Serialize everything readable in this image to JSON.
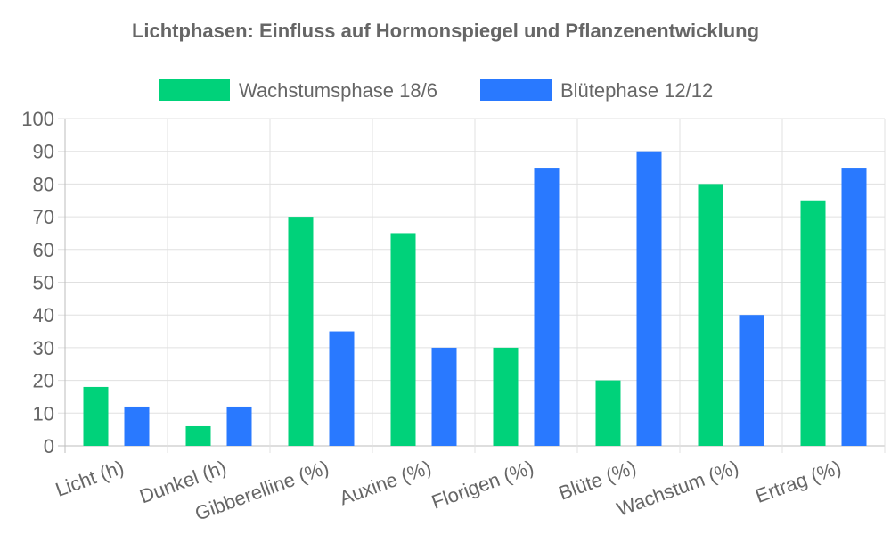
{
  "chart_data": {
    "type": "bar",
    "title": "Lichtphasen: Einfluss auf Hormonspiegel und Pflanzenentwicklung",
    "categories": [
      "Licht (h)",
      "Dunkel (h)",
      "Gibberelline (%)",
      "Auxine (%)",
      "Florigen (%)",
      "Blüte (%)",
      "Wachstum (%)",
      "Ertrag (%)"
    ],
    "series": [
      {
        "name": "Wachstumsphase 18/6",
        "color": "#00d27a",
        "values": [
          18,
          6,
          70,
          65,
          30,
          20,
          80,
          75
        ]
      },
      {
        "name": "Blütephase 12/12",
        "color": "#2979ff",
        "values": [
          12,
          12,
          35,
          30,
          85,
          90,
          40,
          85
        ]
      }
    ],
    "ylim": [
      0,
      100
    ],
    "yticks": [
      0,
      10,
      20,
      30,
      40,
      50,
      60,
      70,
      80,
      90,
      100
    ],
    "xlabel": "",
    "ylabel": "",
    "grid": true,
    "legend_position": "top"
  }
}
